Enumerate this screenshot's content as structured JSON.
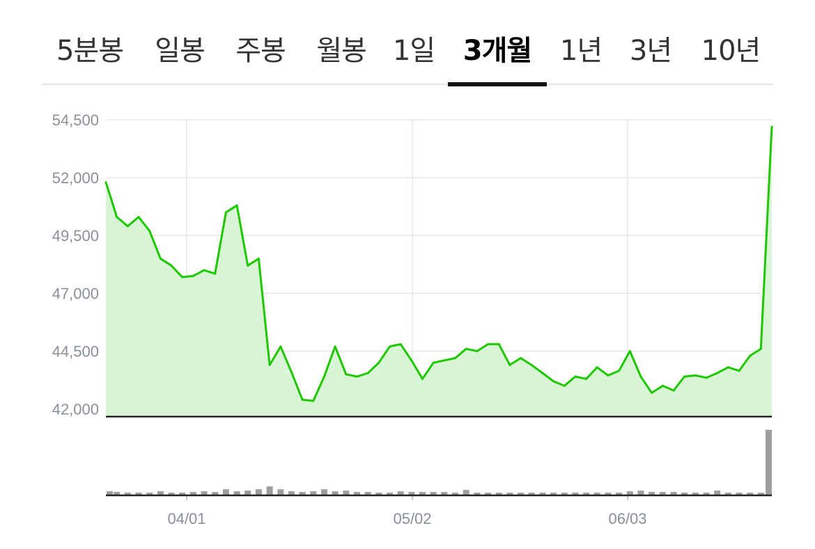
{
  "tabs": [
    {
      "label": "5분봉",
      "active": false
    },
    {
      "label": "일봉",
      "active": false
    },
    {
      "label": "주봉",
      "active": false
    },
    {
      "label": "월봉",
      "active": false
    },
    {
      "label": "1일",
      "active": false
    },
    {
      "label": "3개월",
      "active": true
    },
    {
      "label": "1년",
      "active": false
    },
    {
      "label": "3년",
      "active": false
    },
    {
      "label": "10년",
      "active": false
    }
  ],
  "colors": {
    "line": "#1ec800",
    "area": "#d8f5d5",
    "volume_bar": "#9e9e9e",
    "grid": "#e6e6e6",
    "axis": "#222222",
    "tab_indicator": "#111111"
  },
  "chart_data": {
    "type": "line",
    "ylim": [
      41700,
      54500
    ],
    "y_ticks": [
      "54,500",
      "52,000",
      "49,500",
      "47,000",
      "44,500",
      "42,000"
    ],
    "x_ticks": [
      "04/01",
      "05/02",
      "06/03"
    ],
    "grid": true,
    "price": [
      51800,
      50300,
      49900,
      50300,
      49700,
      48500,
      48200,
      47700,
      47750,
      48000,
      47850,
      50500,
      50800,
      48200,
      48500,
      43900,
      44700,
      43600,
      42400,
      42350,
      43400,
      44700,
      43500,
      43400,
      43550,
      44000,
      44700,
      44800,
      44100,
      43300,
      44000,
      44100,
      44200,
      44600,
      44500,
      44800,
      44800,
      43900,
      44200,
      43900,
      43550,
      43200,
      43000,
      43400,
      43300,
      43800,
      43450,
      43650,
      44500,
      43400,
      42700,
      43000,
      42800,
      43400,
      43450,
      43350,
      43550,
      43800,
      43650,
      44300,
      44600,
      54200
    ],
    "volume": [
      5,
      4,
      3,
      3,
      3,
      5,
      3,
      3,
      4,
      5,
      4,
      8,
      5,
      6,
      8,
      12,
      8,
      5,
      4,
      5,
      8,
      5,
      6,
      4,
      4,
      3,
      3,
      5,
      4,
      4,
      4,
      4,
      3,
      7,
      3,
      3,
      3,
      3,
      3,
      3,
      3,
      3,
      3,
      3,
      3,
      3,
      3,
      3,
      5,
      6,
      4,
      4,
      4,
      3,
      3,
      3,
      6,
      3,
      3,
      3,
      3,
      95
    ]
  }
}
